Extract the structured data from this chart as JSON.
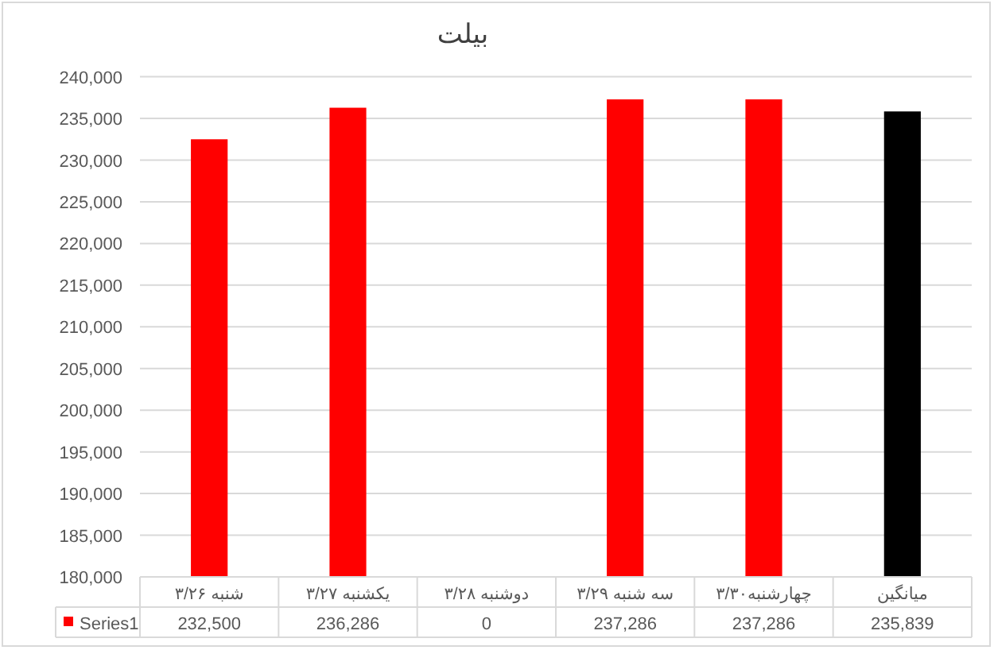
{
  "chart_data": {
    "type": "bar",
    "title": "بیلت",
    "categories": [
      "شنبه ۳/۲۶",
      "یکشنبه ۳/۲۷",
      "دوشنبه ۳/۲۸",
      "سه شنبه ۳/۲۹",
      "چهارشنبه۳/۳۰",
      "میانگین"
    ],
    "series": [
      {
        "name": "Series1",
        "color": "#ff0000",
        "colors": [
          "#ff0000",
          "#ff0000",
          null,
          "#ff0000",
          "#ff0000",
          "#000000"
        ],
        "values": [
          232500,
          236286,
          null,
          237286,
          237286,
          235839
        ],
        "value_labels": [
          "232,500",
          "236,286",
          "0",
          "237,286",
          "237,286",
          "235,839"
        ]
      }
    ],
    "ylim": [
      180000,
      240000
    ],
    "yticks": [
      {
        "value": 180000,
        "label": "180,000"
      },
      {
        "value": 185000,
        "label": "185,000"
      },
      {
        "value": 190000,
        "label": "190,000"
      },
      {
        "value": 195000,
        "label": "195,000"
      },
      {
        "value": 200000,
        "label": "200,000"
      },
      {
        "value": 205000,
        "label": "205,000"
      },
      {
        "value": 210000,
        "label": "210,000"
      },
      {
        "value": 215000,
        "label": "215,000"
      },
      {
        "value": 220000,
        "label": "220,000"
      },
      {
        "value": 225000,
        "label": "225,000"
      },
      {
        "value": 230000,
        "label": "230,000"
      },
      {
        "value": 235000,
        "label": "235,000"
      },
      {
        "value": 240000,
        "label": "240,000"
      }
    ],
    "grid": "y",
    "legend": "bottom"
  }
}
